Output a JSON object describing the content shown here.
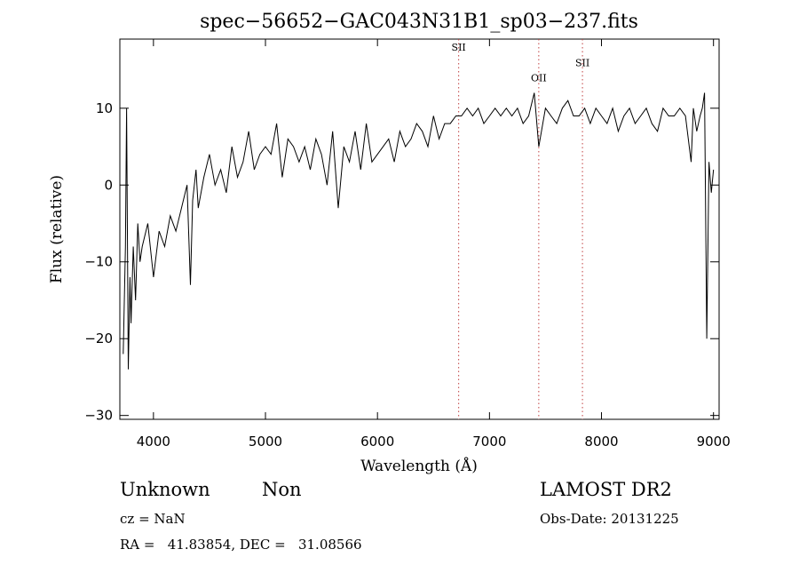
{
  "chart_data": {
    "type": "line",
    "title": "spec−56652−GAC043N31B1_sp03−237.fits",
    "xlabel": "Wavelength (Å)",
    "ylabel": "Flux (relative)",
    "xlim": [
      3700,
      9050
    ],
    "ylim": [
      -30.5,
      19
    ],
    "xticks": [
      4000,
      5000,
      6000,
      7000,
      8000,
      9000
    ],
    "xtick_labels": [
      "4000",
      "5000",
      "6000",
      "7000",
      "8000",
      "9000"
    ],
    "yticks": [
      -30,
      -20,
      -10,
      0,
      10
    ],
    "ytick_labels": [
      "−30",
      "−20",
      "−10",
      "0",
      "10"
    ],
    "grid": false,
    "lines": [
      {
        "label": "SII",
        "x": 6725,
        "label_y": 17.5
      },
      {
        "label": "OII",
        "x": 7440,
        "label_y": 13.5
      },
      {
        "label": "SII",
        "x": 7830,
        "label_y": 15.5
      }
    ],
    "series": [
      {
        "x": [
          3730,
          3750,
          3760,
          3775,
          3790,
          3800,
          3820,
          3840,
          3860,
          3880,
          3900,
          3950,
          4000,
          4050,
          4100,
          4150,
          4200,
          4250,
          4300,
          4330,
          4350,
          4380,
          4400,
          4450,
          4500,
          4550,
          4600,
          4650,
          4700,
          4750,
          4800,
          4850,
          4900,
          4950,
          5000,
          5050,
          5100,
          5150,
          5200,
          5250,
          5300,
          5350,
          5400,
          5450,
          5500,
          5550,
          5600,
          5650,
          5700,
          5750,
          5800,
          5850,
          5900,
          5950,
          6000,
          6050,
          6100,
          6150,
          6200,
          6250,
          6300,
          6350,
          6400,
          6450,
          6500,
          6550,
          6600,
          6650,
          6700,
          6750,
          6800,
          6850,
          6900,
          6950,
          7000,
          7050,
          7100,
          7150,
          7200,
          7250,
          7300,
          7350,
          7400,
          7440,
          7500,
          7550,
          7600,
          7650,
          7700,
          7750,
          7800,
          7850,
          7900,
          7950,
          8000,
          8050,
          8100,
          8150,
          8200,
          8250,
          8300,
          8350,
          8400,
          8450,
          8500,
          8550,
          8600,
          8650,
          8700,
          8750,
          8800,
          8820,
          8850,
          8880,
          8900,
          8920,
          8940,
          8960,
          8980,
          9000
        ],
        "values": [
          -22,
          -8,
          10,
          -24,
          -12,
          -18,
          -8,
          -15,
          -5,
          -10,
          -8,
          -5,
          -12,
          -6,
          -8,
          -4,
          -6,
          -3,
          0,
          -13,
          -2,
          2,
          -3,
          1,
          4,
          0,
          2,
          -1,
          5,
          1,
          3,
          7,
          2,
          4,
          5,
          4,
          8,
          1,
          6,
          5,
          3,
          5,
          2,
          6,
          4,
          0,
          7,
          -3,
          5,
          3,
          7,
          2,
          8,
          3,
          4,
          5,
          6,
          3,
          7,
          5,
          6,
          8,
          7,
          5,
          9,
          6,
          8,
          8,
          9,
          9,
          10,
          9,
          10,
          8,
          9,
          10,
          9,
          10,
          9,
          10,
          8,
          9,
          12,
          5,
          10,
          9,
          8,
          10,
          11,
          9,
          9,
          10,
          8,
          10,
          9,
          8,
          10,
          7,
          9,
          10,
          8,
          9,
          10,
          8,
          7,
          10,
          9,
          9,
          10,
          9,
          3,
          10,
          7,
          9,
          10,
          12,
          -20,
          3,
          -1,
          2
        ]
      }
    ]
  },
  "annotations": {
    "class_label": "Unknown",
    "subclass_label": "Non",
    "cz": "cz = NaN",
    "coords": "RA =   41.83854, DEC =   31.08566",
    "survey": "LAMOST DR2",
    "obs_date": "Obs-Date: 20131225"
  }
}
